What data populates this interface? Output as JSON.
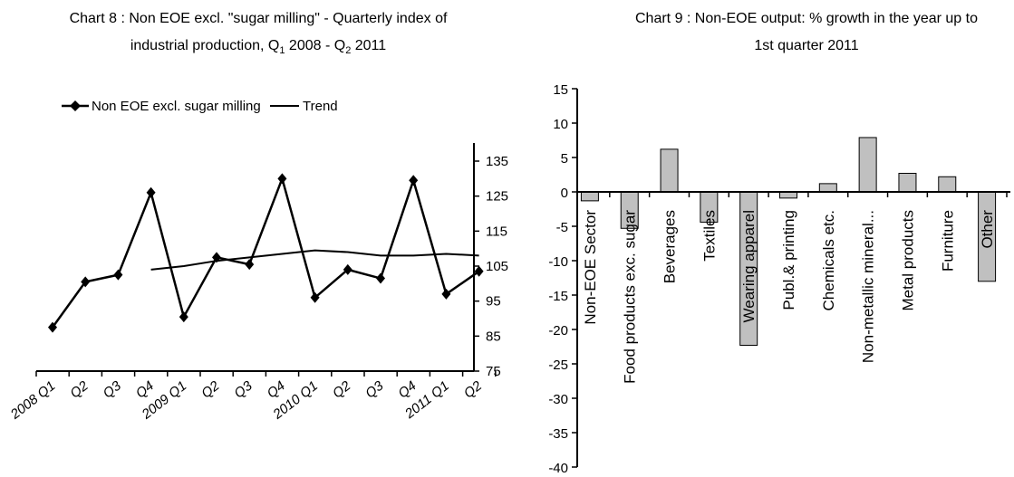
{
  "charts": {
    "left": {
      "title_line1": "Chart 8 : Non EOE excl. \"sugar milling\" - Quarterly index of",
      "title_line2_prefix": "industrial production, Q",
      "title_sub1": "1",
      "title_line2_mid": " 2008 - Q",
      "title_sub2": "2",
      "title_line2_suffix": " 2011",
      "legend": [
        "Non EOE excl. sugar milling",
        "Trend"
      ]
    },
    "right": {
      "title_line1": "Chart 9 : Non-EOE output: % growth in the year up to",
      "title_line2": "1st quarter 2011"
    }
  },
  "chart_data": [
    {
      "type": "line",
      "title": "Chart 8 : Non EOE excl. \"sugar milling\" - Quarterly index of industrial production, Q1 2008 - Q2 2011",
      "x": [
        "2008 Q1",
        "Q2",
        "Q3",
        "Q4",
        "2009 Q1",
        "Q2",
        "Q3",
        "Q4",
        "2010 Q1",
        "Q2",
        "Q3",
        "Q4",
        "2011 Q1",
        "Q2"
      ],
      "series": [
        {
          "name": "Non EOE excl. sugar milling",
          "marker": "diamond",
          "color": "#000000",
          "values": [
            87.5,
            100.5,
            102.5,
            126,
            90.5,
            107.5,
            105.5,
            130,
            96,
            104,
            101.5,
            129.5,
            97,
            103.5
          ]
        },
        {
          "name": "Trend",
          "color": "#000000",
          "values": [
            null,
            null,
            null,
            104,
            105,
            106.5,
            107.5,
            108.5,
            109.5,
            109,
            108,
            108,
            108.5,
            108
          ]
        }
      ],
      "yticks": [
        75,
        85,
        95,
        105,
        115,
        125,
        135
      ],
      "ylim": [
        75,
        140
      ],
      "y_axis_side": "right",
      "legend_position": "top",
      "grid": false
    },
    {
      "type": "bar",
      "title": "Chart 9 : Non-EOE output: % growth in the year up to 1st quarter 2011",
      "categories": [
        "Non-EOE Sector",
        "Food products exc. sugar",
        "Beverages",
        "Textiles",
        "Wearing apparel",
        "Publ.& printing",
        "Chemicals etc.",
        "Non-metallic mineral...",
        "Metal products",
        "Furniture",
        "Other"
      ],
      "values": [
        -1.3,
        -5.3,
        6.2,
        -4.4,
        -22.3,
        -0.9,
        1.2,
        7.9,
        2.7,
        2.2,
        -13
      ],
      "yticks": [
        15,
        10,
        5,
        0,
        -5,
        -10,
        -15,
        -20,
        -25,
        -30,
        -35,
        -40
      ],
      "ylim": [
        -40,
        15
      ],
      "bar_color": "#c0c0c0",
      "grid": false
    }
  ]
}
